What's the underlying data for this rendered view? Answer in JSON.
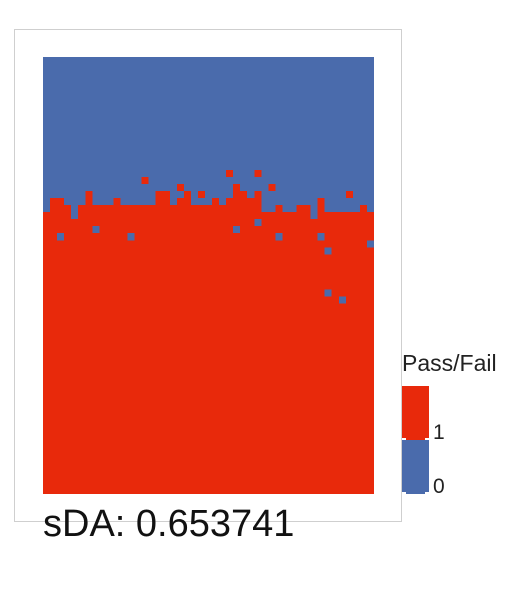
{
  "chart_data": {
    "type": "heatmap",
    "title": "",
    "xlabel": "",
    "ylabel": "",
    "grid": false,
    "legend_position": "right",
    "legend": {
      "title": "Pass/Fail",
      "entries": [
        {
          "label": "1",
          "value": 1,
          "color": "#E8290B"
        },
        {
          "label": "0",
          "value": 0,
          "color": "#4A6BAC"
        }
      ]
    },
    "rows": 62,
    "cols": 47,
    "colors": {
      "0": "#4A6BAC",
      "1": "#E8290B"
    },
    "column_pass_start_row": [
      22,
      20,
      20,
      21,
      23,
      21,
      19,
      21,
      21,
      21,
      20,
      21,
      21,
      21,
      21,
      21,
      19,
      19,
      21,
      20,
      19,
      21,
      21,
      21,
      20,
      21,
      20,
      19,
      19,
      20,
      19,
      22,
      22,
      21,
      22,
      22,
      21,
      21,
      23,
      20,
      22,
      22,
      22,
      22,
      22,
      21,
      22
    ],
    "exceptions": [
      {
        "row": 17,
        "col": 14,
        "value": 1
      },
      {
        "row": 16,
        "col": 26,
        "value": 1
      },
      {
        "row": 16,
        "col": 30,
        "value": 1
      },
      {
        "row": 18,
        "col": 19,
        "value": 1
      },
      {
        "row": 18,
        "col": 27,
        "value": 1
      },
      {
        "row": 18,
        "col": 32,
        "value": 1
      },
      {
        "row": 19,
        "col": 22,
        "value": 1
      },
      {
        "row": 19,
        "col": 43,
        "value": 1
      },
      {
        "row": 23,
        "col": 30,
        "value": 0
      },
      {
        "row": 24,
        "col": 7,
        "value": 0
      },
      {
        "row": 24,
        "col": 27,
        "value": 0
      },
      {
        "row": 25,
        "col": 2,
        "value": 0
      },
      {
        "row": 25,
        "col": 12,
        "value": 0
      },
      {
        "row": 25,
        "col": 33,
        "value": 0
      },
      {
        "row": 26,
        "col": 46,
        "value": 0
      },
      {
        "row": 27,
        "col": 40,
        "value": 0
      },
      {
        "row": 25,
        "col": 39,
        "value": 0
      },
      {
        "row": 33,
        "col": 40,
        "value": 0
      },
      {
        "row": 34,
        "col": 42,
        "value": 0
      }
    ],
    "sda_label": "sDA: 0.653741"
  }
}
